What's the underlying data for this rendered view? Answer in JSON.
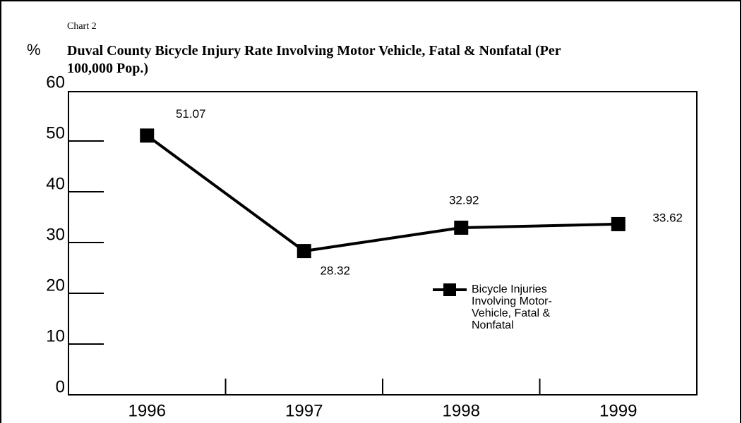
{
  "chart_data": {
    "type": "line",
    "caption": "Chart 2",
    "title": "Duval County Bicycle Injury Rate Involving Motor Vehicle, Fatal & Nonfatal (Per 100,000 Pop.)",
    "ylabel": "%",
    "categories": [
      "1996",
      "1997",
      "1998",
      "1999"
    ],
    "series": [
      {
        "name": "Bicycle Injuries Involving Motor-Vehicle, Fatal & Nonfatal",
        "color": "#000000",
        "values": [
          51.07,
          28.32,
          32.92,
          33.62
        ]
      }
    ],
    "ylim": [
      0,
      60
    ],
    "yticks": [
      0,
      10,
      20,
      30,
      40,
      50,
      60
    ]
  }
}
